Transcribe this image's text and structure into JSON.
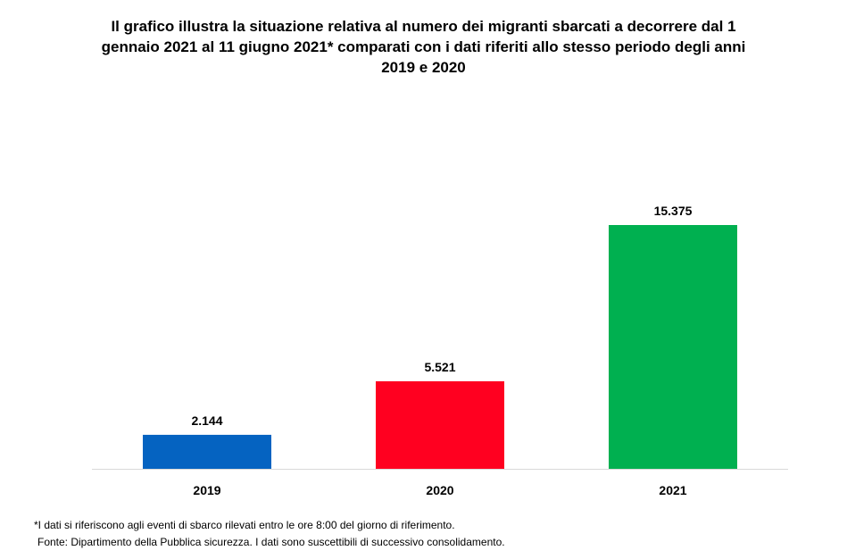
{
  "title_lines": [
    "Il grafico illustra la situazione relativa al numero dei migranti sbarcati a decorrere dal 1",
    "gennaio 2021 al 11 giugno 2021* comparati con i dati riferiti allo stesso periodo degli anni",
    "2019  e 2020"
  ],
  "footnote": {
    "note": "*I dati si riferiscono agli eventi di sbarco rilevati entro le ore 8:00 del giorno di riferimento.",
    "source": "Fonte: Dipartimento della Pubblica sicurezza. I dati sono suscettibili di successivo consolidamento."
  },
  "chart_data": {
    "type": "bar",
    "title": "Il grafico illustra la situazione relativa al numero dei migranti sbarcati a decorrere dal 1 gennaio 2021 al 11 giugno 2021* comparati con i dati riferiti allo stesso periodo degli anni 2019  e 2020",
    "categories": [
      "2019",
      "2020",
      "2021"
    ],
    "values": [
      2144,
      5521,
      15375
    ],
    "value_labels": [
      "2.144",
      "5.521",
      "15.375"
    ],
    "colors": [
      "#0563c1",
      "#ff0020",
      "#00b050"
    ],
    "axis_color": "#d9d9d9",
    "xlabel": "",
    "ylabel": "",
    "grid": false,
    "legend": "none"
  }
}
